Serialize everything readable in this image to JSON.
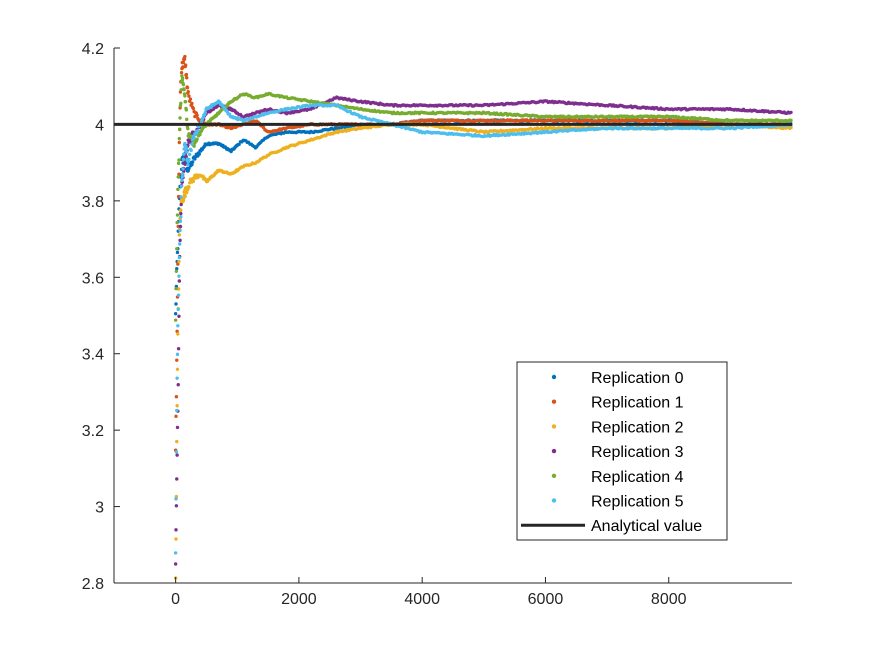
{
  "chart_data": {
    "type": "scatter",
    "title": "",
    "xlabel": "",
    "ylabel": "",
    "xlim": [
      -1000,
      10000
    ],
    "ylim": [
      2.8,
      4.2
    ],
    "xticks": [
      0,
      2000,
      4000,
      6000,
      8000
    ],
    "yticks": [
      2.8,
      3,
      3.2,
      3.4,
      3.6,
      3.8,
      4,
      4.2
    ],
    "grid": false,
    "legend_position": "lower-right",
    "analytical": {
      "name": "Analytical value",
      "value": 4,
      "color": "#262626"
    },
    "series": [
      {
        "name": "Replication 0",
        "color": "#0072BD",
        "x": [
          0,
          20,
          40,
          60,
          80,
          100,
          150,
          200,
          300,
          400,
          500,
          700,
          900,
          1100,
          1300,
          1500,
          1800,
          2200,
          2600,
          3000,
          3500,
          4000,
          5000,
          6000,
          7000,
          8000,
          9000,
          10000
        ],
        "y": [
          3.5,
          3.62,
          3.7,
          3.8,
          3.85,
          3.9,
          3.92,
          3.88,
          3.91,
          3.93,
          3.95,
          3.95,
          3.93,
          3.96,
          3.94,
          3.97,
          3.98,
          3.98,
          3.99,
          4.0,
          4.0,
          4.01,
          4.01,
          4.01,
          4.01,
          4.01,
          4.0,
          4.0
        ]
      },
      {
        "name": "Replication 1",
        "color": "#D95319",
        "x": [
          0,
          20,
          40,
          60,
          80,
          100,
          150,
          200,
          300,
          400,
          500,
          700,
          900,
          1100,
          1300,
          1500,
          1800,
          2200,
          2600,
          3000,
          3500,
          4000,
          5000,
          6000,
          7000,
          8000,
          9000,
          10000
        ],
        "y": [
          3.15,
          3.4,
          3.7,
          3.95,
          4.1,
          4.15,
          4.17,
          4.08,
          4.03,
          4.01,
          4.0,
          4.0,
          3.99,
          4.0,
          4.01,
          3.98,
          3.99,
          4.0,
          4.0,
          4.0,
          4.0,
          4.01,
          4.01,
          4.01,
          4.01,
          4.01,
          4.0,
          4.0
        ]
      },
      {
        "name": "Replication 2",
        "color": "#EDB120",
        "x": [
          0,
          20,
          40,
          60,
          80,
          100,
          150,
          200,
          300,
          400,
          500,
          700,
          900,
          1100,
          1300,
          1500,
          1800,
          2200,
          2600,
          3000,
          3500,
          4000,
          5000,
          6000,
          7000,
          8000,
          9000,
          10000
        ],
        "y": [
          2.8,
          3.2,
          3.5,
          3.7,
          3.78,
          3.8,
          3.82,
          3.84,
          3.86,
          3.87,
          3.85,
          3.88,
          3.87,
          3.89,
          3.9,
          3.92,
          3.94,
          3.96,
          3.98,
          3.99,
          4.0,
          4.0,
          3.98,
          3.99,
          3.99,
          3.99,
          4.0,
          3.99
        ]
      },
      {
        "name": "Replication 3",
        "color": "#7E2F8E",
        "x": [
          0,
          20,
          40,
          60,
          80,
          100,
          150,
          200,
          300,
          400,
          500,
          700,
          900,
          1100,
          1300,
          1500,
          1800,
          2200,
          2600,
          3000,
          3500,
          4000,
          5000,
          6000,
          7000,
          8000,
          9000,
          10000
        ],
        "y": [
          2.86,
          3.1,
          3.3,
          3.6,
          3.75,
          3.85,
          3.9,
          3.95,
          3.98,
          4.0,
          4.03,
          4.05,
          4.04,
          4.02,
          4.03,
          4.04,
          4.03,
          4.04,
          4.07,
          4.06,
          4.05,
          4.05,
          4.05,
          4.06,
          4.05,
          4.04,
          4.04,
          4.03
        ]
      },
      {
        "name": "Replication 4",
        "color": "#77AC30",
        "x": [
          0,
          20,
          40,
          60,
          80,
          100,
          150,
          200,
          300,
          400,
          500,
          700,
          900,
          1100,
          1300,
          1500,
          1800,
          2200,
          2600,
          3000,
          3500,
          4000,
          5000,
          6000,
          7000,
          8000,
          9000,
          10000
        ],
        "y": [
          3.5,
          3.7,
          3.85,
          3.95,
          4.05,
          4.12,
          4.08,
          3.98,
          3.95,
          3.98,
          4.0,
          4.03,
          4.06,
          4.08,
          4.07,
          4.08,
          4.07,
          4.06,
          4.05,
          4.04,
          4.03,
          4.03,
          4.03,
          4.02,
          4.02,
          4.02,
          4.01,
          4.01
        ]
      },
      {
        "name": "Replication 5",
        "color": "#4DBEEE",
        "x": [
          0,
          20,
          40,
          60,
          80,
          100,
          150,
          200,
          300,
          400,
          500,
          700,
          900,
          1100,
          1300,
          1500,
          1800,
          2200,
          2600,
          3000,
          3500,
          4000,
          5000,
          6000,
          7000,
          8000,
          9000,
          10000
        ],
        "y": [
          2.88,
          3.3,
          3.5,
          3.65,
          3.75,
          3.85,
          3.95,
          3.9,
          3.97,
          4.0,
          4.04,
          4.06,
          4.02,
          4.01,
          4.02,
          4.03,
          4.04,
          4.05,
          4.05,
          4.02,
          4.0,
          3.98,
          3.97,
          3.98,
          3.99,
          3.99,
          3.99,
          4.0
        ]
      }
    ]
  }
}
